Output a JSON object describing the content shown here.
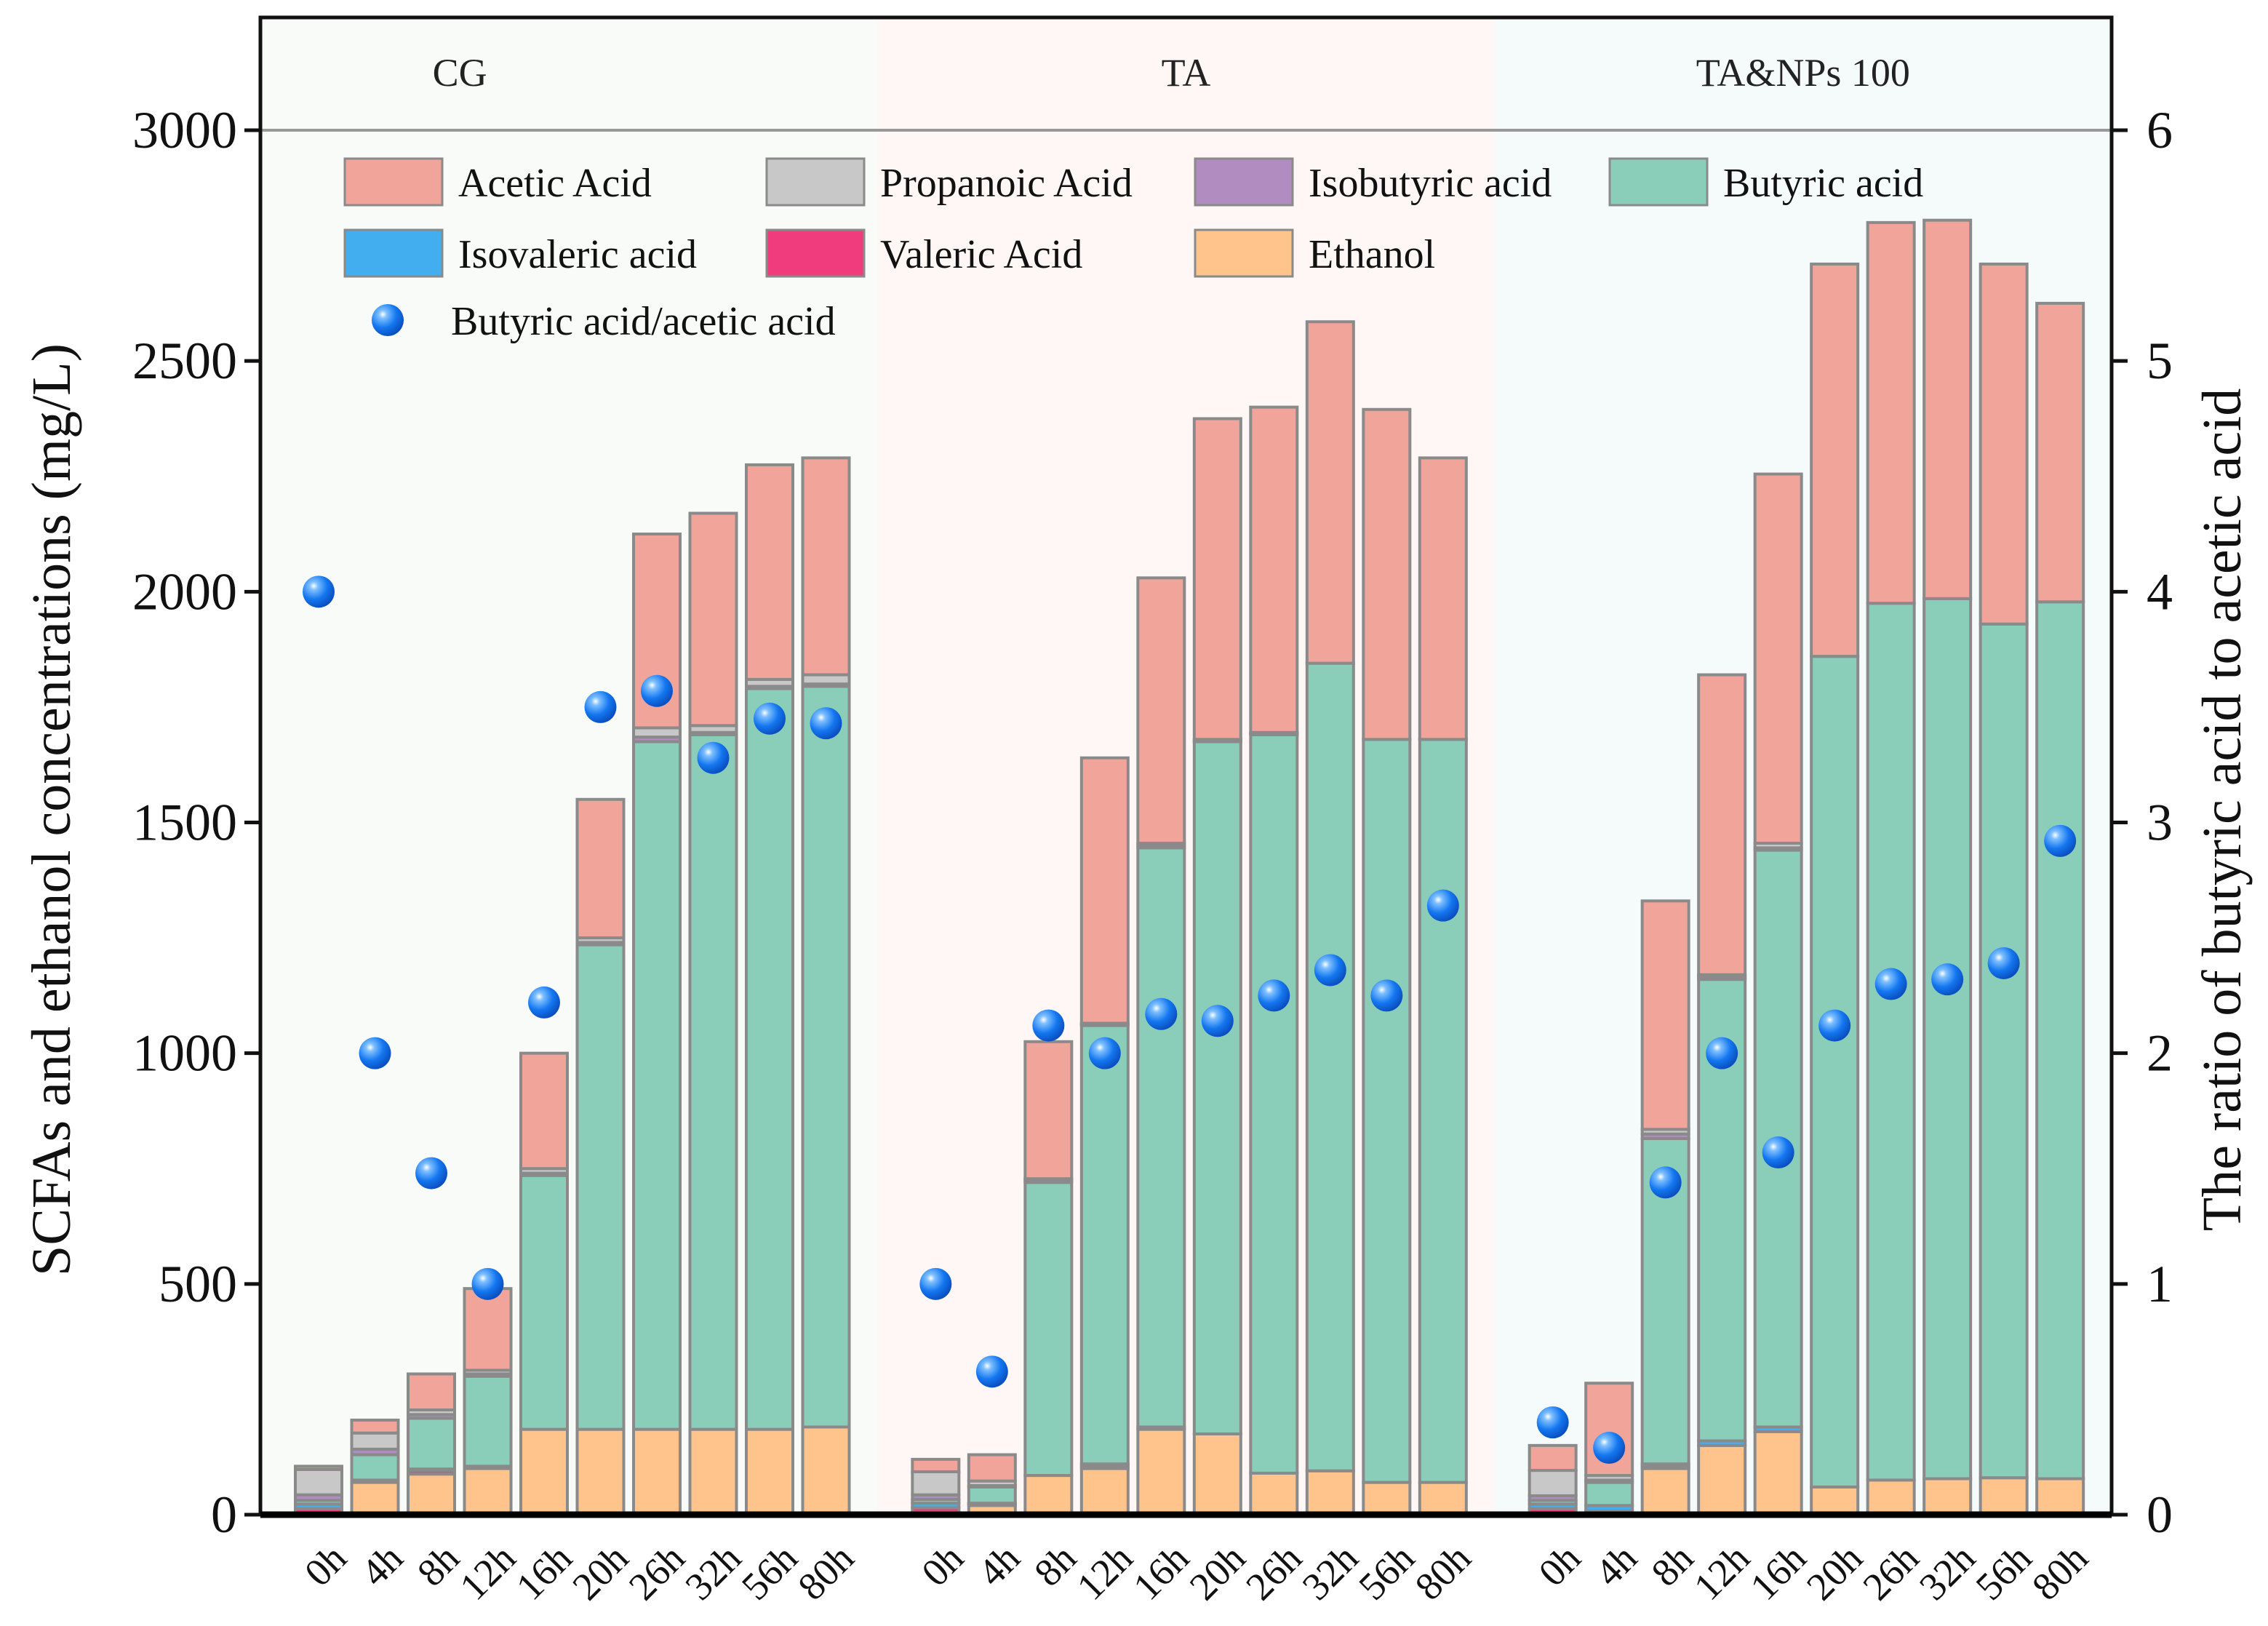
{
  "chart_data": {
    "type": "bar",
    "subtype": "stacked bar with scatter on secondary axis",
    "ylabel": "SCFAs and ethanol concentrations (mg/L)",
    "y2label": "The ratio of butyric acid to acetic acid",
    "ylim": [
      0,
      3000
    ],
    "y2lim": [
      0,
      6
    ],
    "yticks": [
      0,
      500,
      1000,
      1500,
      2000,
      2500,
      3000
    ],
    "y2ticks": [
      0,
      1,
      2,
      3,
      4,
      5,
      6
    ],
    "categories": [
      "0h",
      "4h",
      "8h",
      "12h",
      "16h",
      "20h",
      "26h",
      "32h",
      "56h",
      "80h"
    ],
    "stack_order": [
      "Ethanol",
      "Valeric Acid",
      "Isovaleric acid",
      "Butyric acid",
      "Isobutyric acid",
      "Propanoic Acid",
      "Acetic Acid"
    ],
    "colors": {
      "Acetic Acid": "#F0A49A",
      "Propanoic Acid": "#C8C8C8",
      "Isobutyric acid": "#B08CC0",
      "Butyric acid": "#8ACDB9",
      "Isovaleric acid": "#42AEEF",
      "Valeric Acid": "#F03C7C",
      "Ethanol": "#FFC38C",
      "ratio": "#1477F0"
    },
    "legend": {
      "position": "top-left",
      "items": [
        "Acetic Acid",
        "Propanoic Acid",
        "Isobutyric acid",
        "Butyric acid",
        "Isovaleric acid",
        "Valeric Acid",
        "Ethanol"
      ],
      "ratio_label": "Butyric acid/acetic acid"
    },
    "groups": [
      {
        "name": "CG",
        "background": "#F8FBF7",
        "series": {
          "Ethanol": [
            3,
            70,
            88,
            100,
            185,
            185,
            185,
            185,
            185,
            190
          ],
          "Valeric Acid": [
            10,
            3,
            8,
            3,
            0,
            0,
            0,
            0,
            0,
            0
          ],
          "Isovaleric acid": [
            10,
            2,
            3,
            2,
            0,
            0,
            0,
            0,
            0,
            0
          ],
          "Butyric acid": [
            8,
            55,
            110,
            195,
            550,
            1050,
            1490,
            1505,
            1605,
            1605
          ],
          "Isobutyric acid": [
            12,
            12,
            8,
            5,
            5,
            5,
            10,
            5,
            5,
            5
          ],
          "Propanoic Acid": [
            55,
            35,
            10,
            8,
            10,
            10,
            20,
            15,
            15,
            20
          ],
          "Acetic Acid": [
            7,
            28,
            78,
            177,
            250,
            300,
            420,
            460,
            465,
            470
          ]
        },
        "ratio": [
          4.0,
          2.0,
          1.48,
          1.0,
          2.22,
          3.5,
          3.57,
          3.28,
          3.45,
          3.43
        ]
      },
      {
        "name": "TA",
        "background": "#FEF7F6",
        "series": {
          "Ethanol": [
            5,
            20,
            85,
            100,
            185,
            175,
            90,
            95,
            70,
            70
          ],
          "Valeric Acid": [
            10,
            3,
            0,
            5,
            0,
            0,
            0,
            0,
            0,
            0
          ],
          "Isovaleric acid": [
            10,
            2,
            0,
            5,
            5,
            0,
            0,
            0,
            0,
            0
          ],
          "Butyric acid": [
            8,
            35,
            635,
            950,
            1255,
            1500,
            1600,
            1750,
            1610,
            1610
          ],
          "Isobutyric acid": [
            10,
            3,
            4,
            3,
            5,
            3,
            3,
            0,
            0,
            0
          ],
          "Propanoic Acid": [
            50,
            10,
            4,
            2,
            5,
            2,
            2,
            0,
            0,
            0
          ],
          "Acetic Acid": [
            27,
            57,
            297,
            575,
            575,
            695,
            705,
            740,
            715,
            610
          ]
        },
        "ratio": [
          1.0,
          0.62,
          2.12,
          2.0,
          2.17,
          2.14,
          2.25,
          2.36,
          2.25,
          2.64
        ]
      },
      {
        "name": "TA&NPs 100",
        "background": "#F5FAFB",
        "series": {
          "Ethanol": [
            3,
            3,
            100,
            150,
            180,
            60,
            75,
            78,
            80,
            78
          ],
          "Valeric Acid": [
            10,
            5,
            5,
            0,
            0,
            0,
            0,
            0,
            0,
            0
          ],
          "Isovaleric acid": [
            10,
            12,
            5,
            10,
            10,
            0,
            0,
            0,
            0,
            0
          ],
          "Butyric acid": [
            8,
            50,
            705,
            1000,
            1250,
            1800,
            1900,
            1907,
            1850,
            1900
          ],
          "Isobutyric acid": [
            10,
            5,
            10,
            5,
            5,
            0,
            0,
            0,
            0,
            0
          ],
          "Propanoic Acid": [
            55,
            10,
            10,
            5,
            10,
            0,
            0,
            0,
            0,
            0
          ],
          "Acetic Acid": [
            54,
            200,
            495,
            650,
            800,
            850,
            825,
            820,
            780,
            647
          ]
        },
        "ratio": [
          0.4,
          0.29,
          1.44,
          2.0,
          1.57,
          2.12,
          2.3,
          2.32,
          2.39,
          2.92
        ]
      }
    ]
  }
}
